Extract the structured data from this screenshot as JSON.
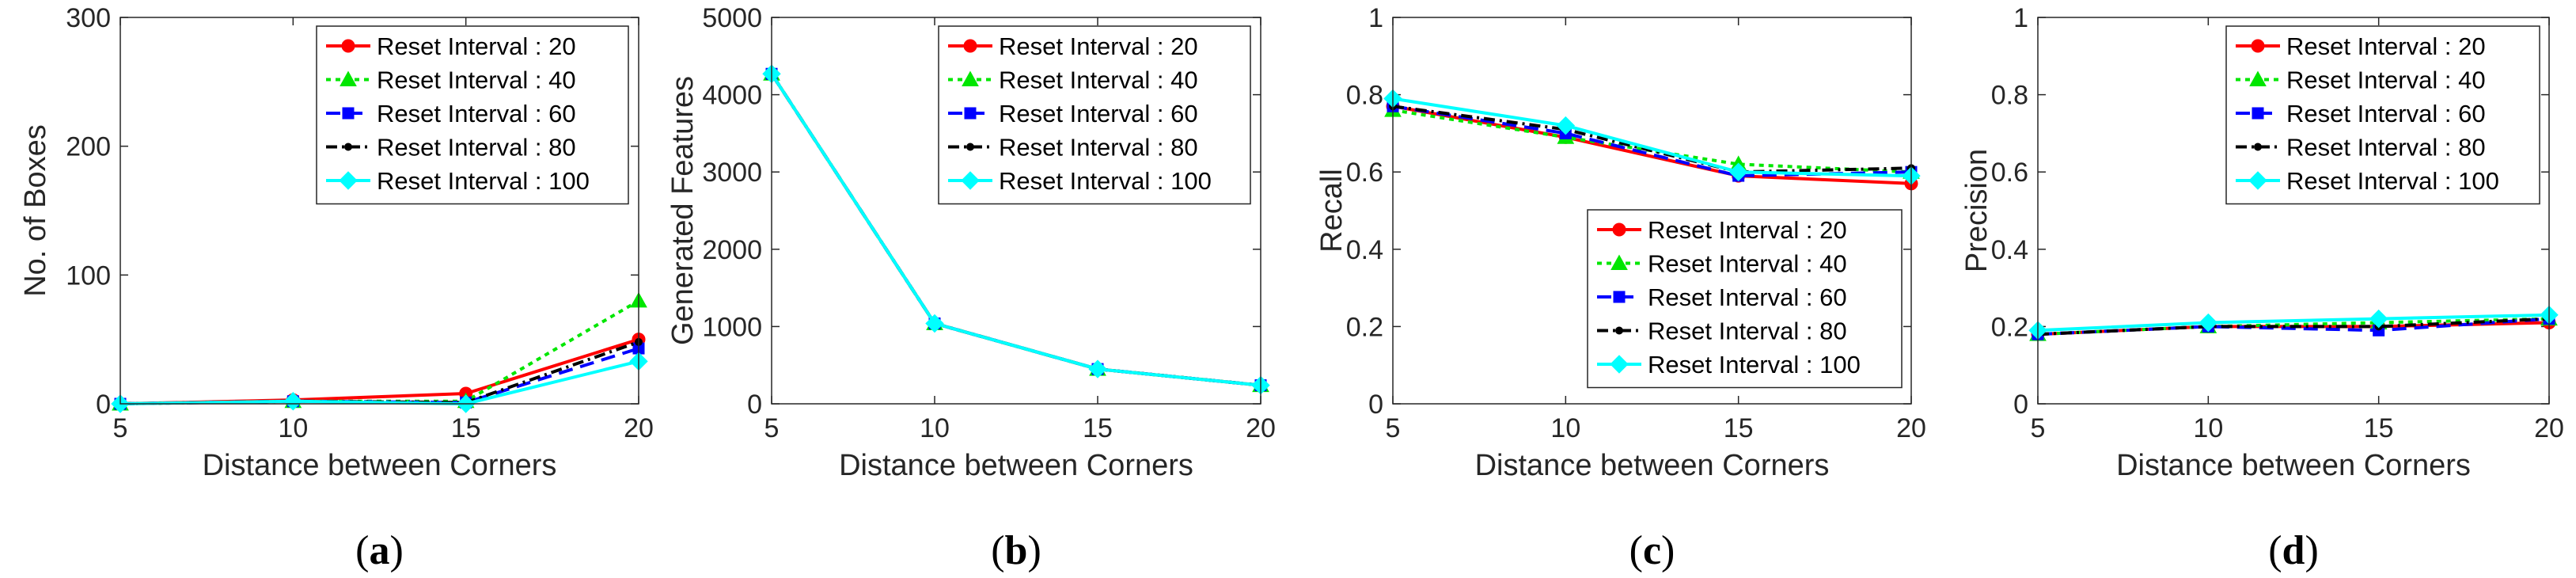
{
  "chart_data": [
    {
      "type": "line",
      "panel_label": "a",
      "xlabel": "Distance between Corners",
      "ylabel": "No. of Boxes",
      "x": [
        5,
        10,
        15,
        20
      ],
      "xlim": [
        5,
        20
      ],
      "ylim": [
        0,
        300
      ],
      "xticks": [
        5,
        10,
        15,
        20
      ],
      "yticks": [
        0,
        100,
        200,
        300
      ],
      "legend_position": "top-right",
      "series": [
        {
          "name": "Reset Interval : 20",
          "values": [
            0,
            3,
            8,
            50
          ]
        },
        {
          "name": "Reset Interval : 40",
          "values": [
            0,
            2,
            2,
            80
          ]
        },
        {
          "name": "Reset Interval : 60",
          "values": [
            0,
            2,
            1,
            43
          ]
        },
        {
          "name": "Reset Interval : 80",
          "values": [
            0,
            2,
            1,
            48
          ]
        },
        {
          "name": "Reset Interval : 100",
          "values": [
            0,
            2,
            0,
            33
          ]
        }
      ]
    },
    {
      "type": "line",
      "panel_label": "b",
      "xlabel": "Distance between Corners",
      "ylabel": "Generated Features",
      "x": [
        5,
        10,
        15,
        20
      ],
      "xlim": [
        5,
        20
      ],
      "ylim": [
        0,
        5000
      ],
      "xticks": [
        5,
        10,
        15,
        20
      ],
      "yticks": [
        0,
        1000,
        2000,
        3000,
        4000,
        5000
      ],
      "legend_position": "top-right",
      "series": [
        {
          "name": "Reset Interval : 20",
          "values": [
            4270,
            1040,
            450,
            240
          ]
        },
        {
          "name": "Reset Interval : 40",
          "values": [
            4270,
            1040,
            450,
            240
          ]
        },
        {
          "name": "Reset Interval : 60",
          "values": [
            4270,
            1040,
            450,
            240
          ]
        },
        {
          "name": "Reset Interval : 80",
          "values": [
            4270,
            1040,
            450,
            240
          ]
        },
        {
          "name": "Reset Interval : 100",
          "values": [
            4270,
            1040,
            450,
            240
          ]
        }
      ]
    },
    {
      "type": "line",
      "panel_label": "c",
      "xlabel": "Distance between Corners",
      "ylabel": "Recall",
      "x": [
        5,
        10,
        15,
        20
      ],
      "xlim": [
        5,
        20
      ],
      "ylim": [
        0,
        1
      ],
      "xticks": [
        5,
        10,
        15,
        20
      ],
      "yticks": [
        0,
        0.2,
        0.4,
        0.6,
        0.8,
        1
      ],
      "legend_position": "bottom-right",
      "series": [
        {
          "name": "Reset Interval : 20",
          "values": [
            0.77,
            0.69,
            0.59,
            0.57
          ]
        },
        {
          "name": "Reset Interval : 40",
          "values": [
            0.76,
            0.69,
            0.62,
            0.6
          ]
        },
        {
          "name": "Reset Interval : 60",
          "values": [
            0.77,
            0.7,
            0.59,
            0.6
          ]
        },
        {
          "name": "Reset Interval : 80",
          "values": [
            0.77,
            0.71,
            0.6,
            0.61
          ]
        },
        {
          "name": "Reset Interval : 100",
          "values": [
            0.79,
            0.72,
            0.6,
            0.59
          ]
        }
      ]
    },
    {
      "type": "line",
      "panel_label": "d",
      "xlabel": "Distance between Corners",
      "ylabel": "Precision",
      "x": [
        5,
        10,
        15,
        20
      ],
      "xlim": [
        5,
        20
      ],
      "ylim": [
        0,
        1
      ],
      "xticks": [
        5,
        10,
        15,
        20
      ],
      "yticks": [
        0,
        0.2,
        0.4,
        0.6,
        0.8,
        1
      ],
      "legend_position": "top-right",
      "series": [
        {
          "name": "Reset Interval : 20",
          "values": [
            0.18,
            0.2,
            0.2,
            0.21
          ]
        },
        {
          "name": "Reset Interval : 40",
          "values": [
            0.18,
            0.2,
            0.21,
            0.22
          ]
        },
        {
          "name": "Reset Interval : 60",
          "values": [
            0.18,
            0.2,
            0.19,
            0.22
          ]
        },
        {
          "name": "Reset Interval : 80",
          "values": [
            0.18,
            0.2,
            0.2,
            0.22
          ]
        },
        {
          "name": "Reset Interval : 100",
          "values": [
            0.19,
            0.21,
            0.22,
            0.23
          ]
        }
      ]
    }
  ],
  "series_styles": [
    {
      "color": "#ff0000",
      "marker": "circle"
    },
    {
      "color": "#00e600",
      "marker": "triangle"
    },
    {
      "color": "#0000ff",
      "marker": "square"
    },
    {
      "color": "#000000",
      "marker": "dot"
    },
    {
      "color": "#00ffff",
      "marker": "diamond"
    }
  ]
}
